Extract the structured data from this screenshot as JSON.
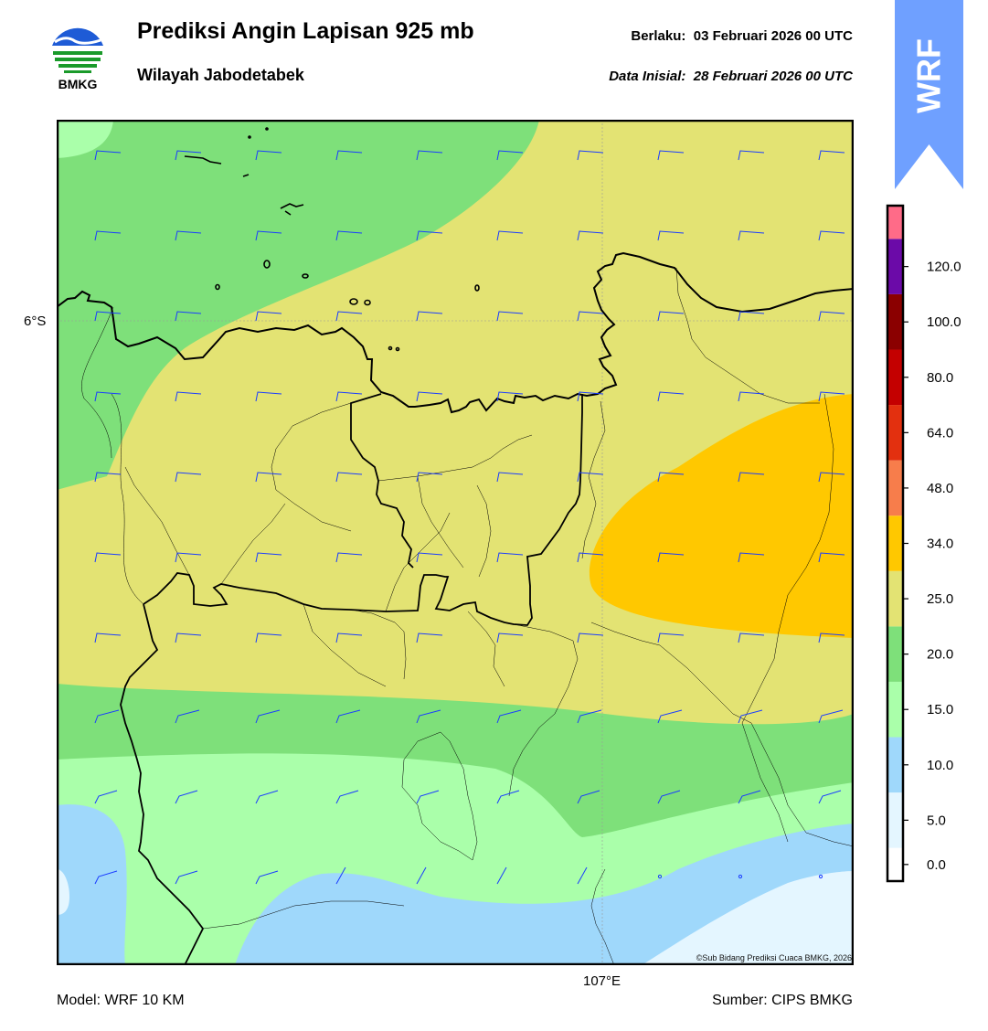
{
  "header": {
    "title": "Prediksi Angin Lapisan 925 mb",
    "subtitle": "Wilayah Jabodetabek",
    "valid_label": "Berlaku:",
    "valid_time": "03 Februari 2026 00 UTC",
    "init_label": "Data Inisial:",
    "init_time": "28 Februari 2026 00 UTC"
  },
  "logo": {
    "name": "bmkg-logo",
    "text": "BMKG"
  },
  "badge": {
    "text": "WRF",
    "color": "#6fa0ff"
  },
  "map": {
    "lat_label": "6°S",
    "lon_label": "107°E",
    "copyright": "©Sub Bidang Prediksi Cuaca BMKG, 2026",
    "barb_color": "#1a3cff"
  },
  "colorbar": {
    "ticks": [
      "0.0",
      "5.0",
      "10.0",
      "15.0",
      "20.0",
      "25.0",
      "34.0",
      "48.0",
      "64.0",
      "80.0",
      "100.0",
      "120.0"
    ],
    "colors": [
      "#ffffff",
      "#e4f6ff",
      "#9fd8fb",
      "#aaffaa",
      "#7ee07a",
      "#e3e373",
      "#ffc800",
      "#f77d4b",
      "#e3300f",
      "#c40000",
      "#8b0000",
      "#6b0aa8",
      "#ff6b88"
    ]
  },
  "footer": {
    "model": "Model: WRF 10 KM",
    "source": "Sumber: CIPS BMKG"
  }
}
